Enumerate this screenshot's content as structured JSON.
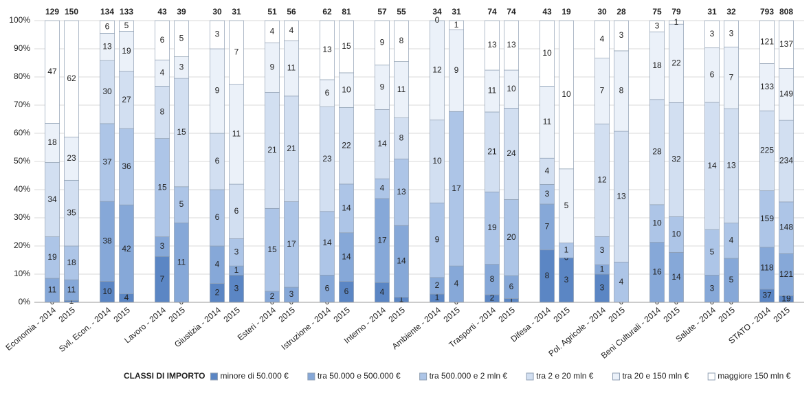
{
  "chart_data": {
    "type": "bar",
    "stacking": "percent",
    "categories": [
      "Economia - 2014",
      "2015",
      "Svil. Econ. - 2014",
      "2015",
      "Lavoro - 2014",
      "2015",
      "Giustizia - 2014",
      "2015",
      "Esteri - 2014",
      "2015",
      "Istruzione - 2014",
      "2015",
      "Interno - 2014",
      "2015",
      "Ambiente - 2014",
      "2015",
      "Trasporti - 2014",
      "2015",
      "Difesa - 2014",
      "2015",
      "Pol. Agricole - 2014",
      "2015",
      "Beni Culturali - 2014",
      "2015",
      "Salute - 2014",
      "2015",
      "STATO - 2014",
      "2015"
    ],
    "totals": [
      129,
      150,
      134,
      133,
      43,
      39,
      30,
      31,
      51,
      56,
      62,
      81,
      57,
      55,
      34,
      31,
      74,
      74,
      43,
      19,
      30,
      28,
      75,
      79,
      31,
      32,
      793,
      808
    ],
    "legend_title": "CLASSI DI IMPORTO",
    "series": [
      {
        "name": "minore di 50.000 €",
        "color": "#5b86c4",
        "values": [
          0,
          1,
          10,
          4,
          7,
          0,
          2,
          3,
          0,
          0,
          0,
          6,
          4,
          1,
          1,
          0,
          2,
          1,
          8,
          3,
          3,
          0,
          0,
          0,
          0,
          0,
          37,
          19
        ]
      },
      {
        "name": "tra 50.000 e 500.000 €",
        "color": "#86a8d8",
        "values": [
          11,
          11,
          38,
          42,
          3,
          11,
          4,
          1,
          2,
          3,
          6,
          14,
          17,
          14,
          2,
          4,
          8,
          6,
          7,
          0,
          1,
          null,
          16,
          14,
          3,
          5,
          118,
          121
        ]
      },
      {
        "name": "tra 500.000 e 2 mln €",
        "color": "#adc5e7",
        "values": [
          19,
          18,
          37,
          36,
          15,
          5,
          6,
          3,
          15,
          17,
          14,
          14,
          4,
          13,
          9,
          17,
          19,
          20,
          3,
          1,
          3,
          4,
          10,
          10,
          5,
          4,
          159,
          148
        ]
      },
      {
        "name": "tra 2 e 20 mln €",
        "color": "#d2dff1",
        "values": [
          34,
          35,
          30,
          27,
          8,
          15,
          6,
          6,
          21,
          21,
          23,
          22,
          14,
          8,
          10,
          null,
          21,
          24,
          4,
          null,
          12,
          13,
          28,
          32,
          14,
          13,
          225,
          234
        ]
      },
      {
        "name": "tra 20 e 150 mln €",
        "color": "#ebf1f9",
        "values": [
          18,
          23,
          13,
          19,
          4,
          3,
          9,
          11,
          9,
          11,
          6,
          10,
          9,
          11,
          12,
          9,
          11,
          10,
          11,
          5,
          7,
          8,
          18,
          22,
          6,
          7,
          133,
          149
        ]
      },
      {
        "name": "maggiore 150 mln €",
        "color": "#ffffff",
        "values": [
          47,
          62,
          6,
          5,
          6,
          5,
          3,
          7,
          4,
          4,
          13,
          15,
          9,
          8,
          0,
          1,
          13,
          13,
          10,
          10,
          4,
          3,
          3,
          1,
          3,
          3,
          121,
          137
        ]
      }
    ],
    "ylim": [
      0,
      100
    ],
    "yticks": [
      {
        "value": 0,
        "label": "0%"
      },
      {
        "value": 10,
        "label": "10%"
      },
      {
        "value": 20,
        "label": "20%"
      },
      {
        "value": 30,
        "label": "30%"
      },
      {
        "value": 40,
        "label": "40%"
      },
      {
        "value": 50,
        "label": "50%"
      },
      {
        "value": 60,
        "label": "60%"
      },
      {
        "value": 70,
        "label": "70%"
      },
      {
        "value": 80,
        "label": "80%"
      },
      {
        "value": 90,
        "label": "90%"
      },
      {
        "value": 100,
        "label": "100%"
      }
    ],
    "grid": true
  }
}
